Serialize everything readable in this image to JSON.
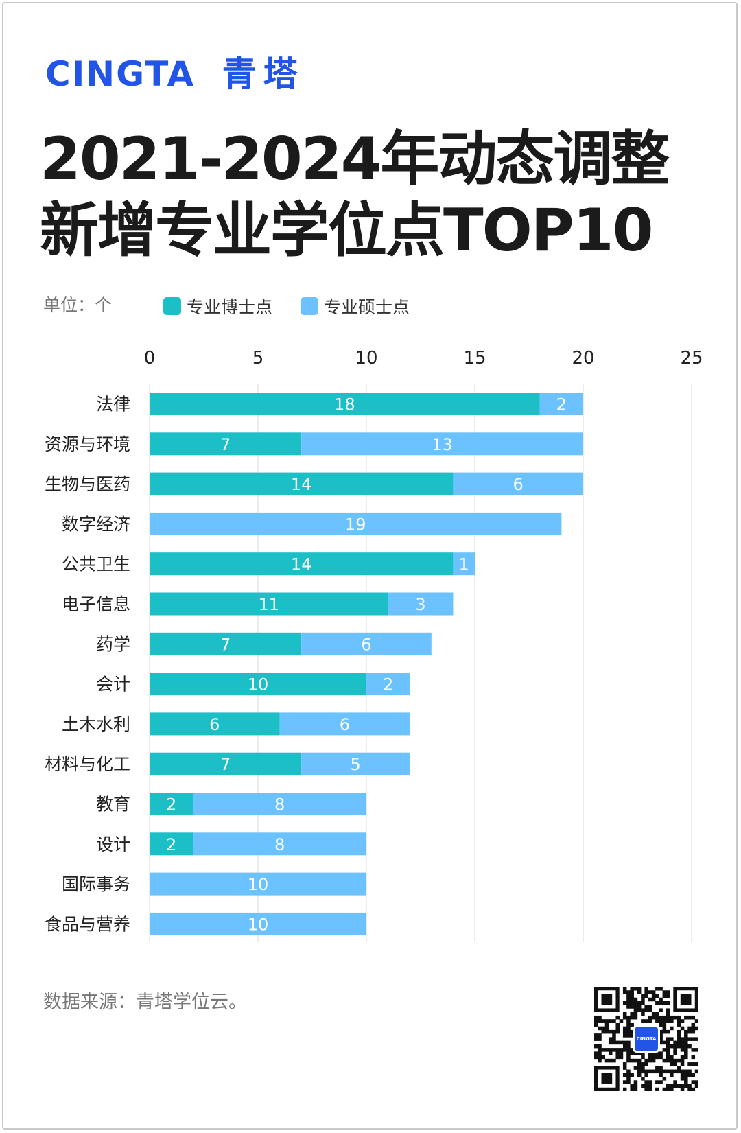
{
  "brand": {
    "latin": "CINGTA",
    "chinese": "青塔",
    "color": "#2255e6"
  },
  "title": {
    "line1": "2021-2024年动态调整",
    "line2": "新增专业学位点TOP10"
  },
  "unit_label": "单位：个",
  "source": "数据来源：青塔学位云。",
  "qr_logo_text": "CINGTA",
  "chart_data": {
    "type": "bar",
    "orientation": "horizontal",
    "stacked": true,
    "categories": [
      "法律",
      "资源与环境",
      "生物与医药",
      "数字经济",
      "公共卫生",
      "电子信息",
      "药学",
      "会计",
      "土木水利",
      "材料与化工",
      "教育",
      "设计",
      "国际事务",
      "食品与营养"
    ],
    "series": [
      {
        "name": "专业博士点",
        "color": "#1cbfc6",
        "values": [
          18,
          7,
          14,
          0,
          14,
          11,
          7,
          10,
          6,
          7,
          2,
          2,
          0,
          0
        ]
      },
      {
        "name": "专业硕士点",
        "color": "#6cc2ff",
        "values": [
          2,
          13,
          6,
          19,
          1,
          3,
          6,
          2,
          6,
          5,
          8,
          8,
          10,
          10
        ]
      }
    ],
    "xlim": [
      0,
      25
    ],
    "xticks": [
      0,
      5,
      10,
      15,
      20,
      25
    ],
    "xaxis_position": "top",
    "grid": true,
    "legend": "top-left",
    "data_labels": true
  }
}
